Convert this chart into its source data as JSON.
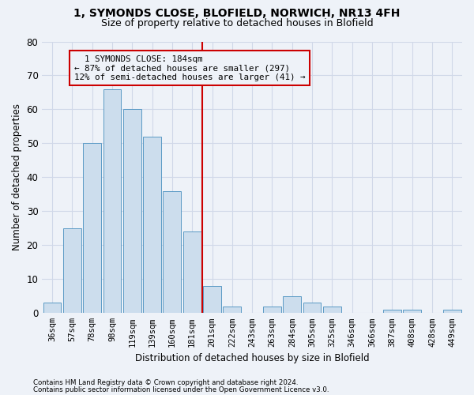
{
  "title_line1": "1, SYMONDS CLOSE, BLOFIELD, NORWICH, NR13 4FH",
  "title_line2": "Size of property relative to detached houses in Blofield",
  "xlabel": "Distribution of detached houses by size in Blofield",
  "ylabel": "Number of detached properties",
  "bar_labels": [
    "36sqm",
    "57sqm",
    "78sqm",
    "98sqm",
    "119sqm",
    "139sqm",
    "160sqm",
    "181sqm",
    "201sqm",
    "222sqm",
    "243sqm",
    "263sqm",
    "284sqm",
    "305sqm",
    "325sqm",
    "346sqm",
    "366sqm",
    "387sqm",
    "408sqm",
    "428sqm",
    "449sqm"
  ],
  "bar_values": [
    3,
    25,
    50,
    66,
    60,
    52,
    36,
    24,
    8,
    2,
    0,
    2,
    5,
    3,
    2,
    0,
    0,
    1,
    1,
    0,
    1
  ],
  "bar_color": "#ccdded",
  "bar_edge_color": "#5a9ac5",
  "vline_x_index": 7,
  "vline_color": "#cc0000",
  "annotation_text": "  1 SYMONDS CLOSE: 184sqm\n← 87% of detached houses are smaller (297)\n12% of semi-detached houses are larger (41) →",
  "annotation_box_color": "#cc0000",
  "ylim": [
    0,
    80
  ],
  "yticks": [
    0,
    10,
    20,
    30,
    40,
    50,
    60,
    70,
    80
  ],
  "grid_color": "#d0d8e8",
  "background_color": "#eef2f8",
  "footnote1": "Contains HM Land Registry data © Crown copyright and database right 2024.",
  "footnote2": "Contains public sector information licensed under the Open Government Licence v3.0."
}
